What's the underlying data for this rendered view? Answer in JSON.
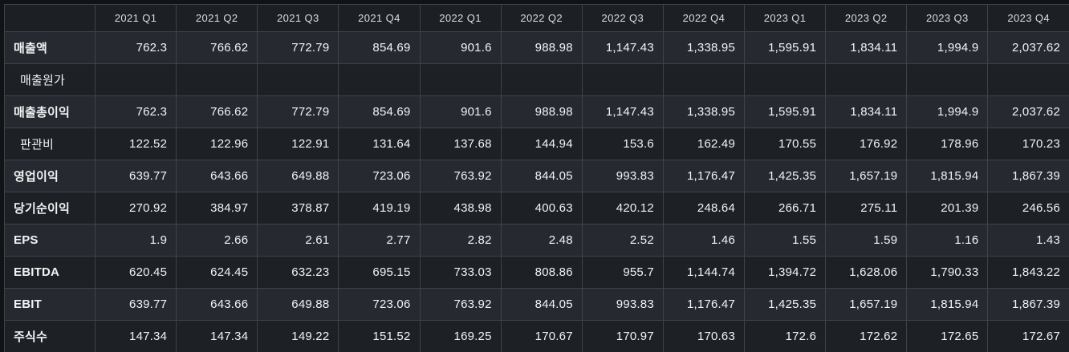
{
  "colors": {
    "page_bg": "#111317",
    "header_bg": "#1c2025",
    "row_light_bg": "#262a30",
    "row_dark_bg": "#1d2025",
    "gridline": "#3e434a",
    "header_text": "#dcdee2",
    "cell_text": "#f2f3f5"
  },
  "table": {
    "corner_label": "",
    "columns": [
      "2021 Q1",
      "2021 Q2",
      "2021 Q3",
      "2021 Q4",
      "2022 Q1",
      "2022 Q2",
      "2022 Q3",
      "2022 Q4",
      "2023 Q1",
      "2023 Q2",
      "2023 Q3",
      "2023 Q4"
    ],
    "rows": [
      {
        "label": "매출액",
        "indent": false,
        "bold": true,
        "values": [
          "762.3",
          "766.62",
          "772.79",
          "854.69",
          "901.6",
          "988.98",
          "1,147.43",
          "1,338.95",
          "1,595.91",
          "1,834.11",
          "1,994.9",
          "2,037.62"
        ]
      },
      {
        "label": "매출원가",
        "indent": true,
        "bold": false,
        "values": [
          "",
          "",
          "",
          "",
          "",
          "",
          "",
          "",
          "",
          "",
          "",
          ""
        ]
      },
      {
        "label": "매출총이익",
        "indent": false,
        "bold": true,
        "values": [
          "762.3",
          "766.62",
          "772.79",
          "854.69",
          "901.6",
          "988.98",
          "1,147.43",
          "1,338.95",
          "1,595.91",
          "1,834.11",
          "1,994.9",
          "2,037.62"
        ]
      },
      {
        "label": "판관비",
        "indent": true,
        "bold": false,
        "values": [
          "122.52",
          "122.96",
          "122.91",
          "131.64",
          "137.68",
          "144.94",
          "153.6",
          "162.49",
          "170.55",
          "176.92",
          "178.96",
          "170.23"
        ]
      },
      {
        "label": "영업이익",
        "indent": false,
        "bold": true,
        "values": [
          "639.77",
          "643.66",
          "649.88",
          "723.06",
          "763.92",
          "844.05",
          "993.83",
          "1,176.47",
          "1,425.35",
          "1,657.19",
          "1,815.94",
          "1,867.39"
        ]
      },
      {
        "label": "당기순이익",
        "indent": false,
        "bold": true,
        "values": [
          "270.92",
          "384.97",
          "378.87",
          "419.19",
          "438.98",
          "400.63",
          "420.12",
          "248.64",
          "266.71",
          "275.11",
          "201.39",
          "246.56"
        ]
      },
      {
        "label": "EPS",
        "indent": false,
        "bold": true,
        "values": [
          "1.9",
          "2.66",
          "2.61",
          "2.77",
          "2.82",
          "2.48",
          "2.52",
          "1.46",
          "1.55",
          "1.59",
          "1.16",
          "1.43"
        ]
      },
      {
        "label": "EBITDA",
        "indent": false,
        "bold": true,
        "values": [
          "620.45",
          "624.45",
          "632.23",
          "695.15",
          "733.03",
          "808.86",
          "955.7",
          "1,144.74",
          "1,394.72",
          "1,628.06",
          "1,790.33",
          "1,843.22"
        ]
      },
      {
        "label": "EBIT",
        "indent": false,
        "bold": true,
        "values": [
          "639.77",
          "643.66",
          "649.88",
          "723.06",
          "763.92",
          "844.05",
          "993.83",
          "1,176.47",
          "1,425.35",
          "1,657.19",
          "1,815.94",
          "1,867.39"
        ]
      },
      {
        "label": "주식수",
        "indent": false,
        "bold": true,
        "values": [
          "147.34",
          "147.34",
          "149.22",
          "151.52",
          "169.25",
          "170.67",
          "170.97",
          "170.63",
          "172.6",
          "172.62",
          "172.65",
          "172.67"
        ]
      }
    ]
  }
}
